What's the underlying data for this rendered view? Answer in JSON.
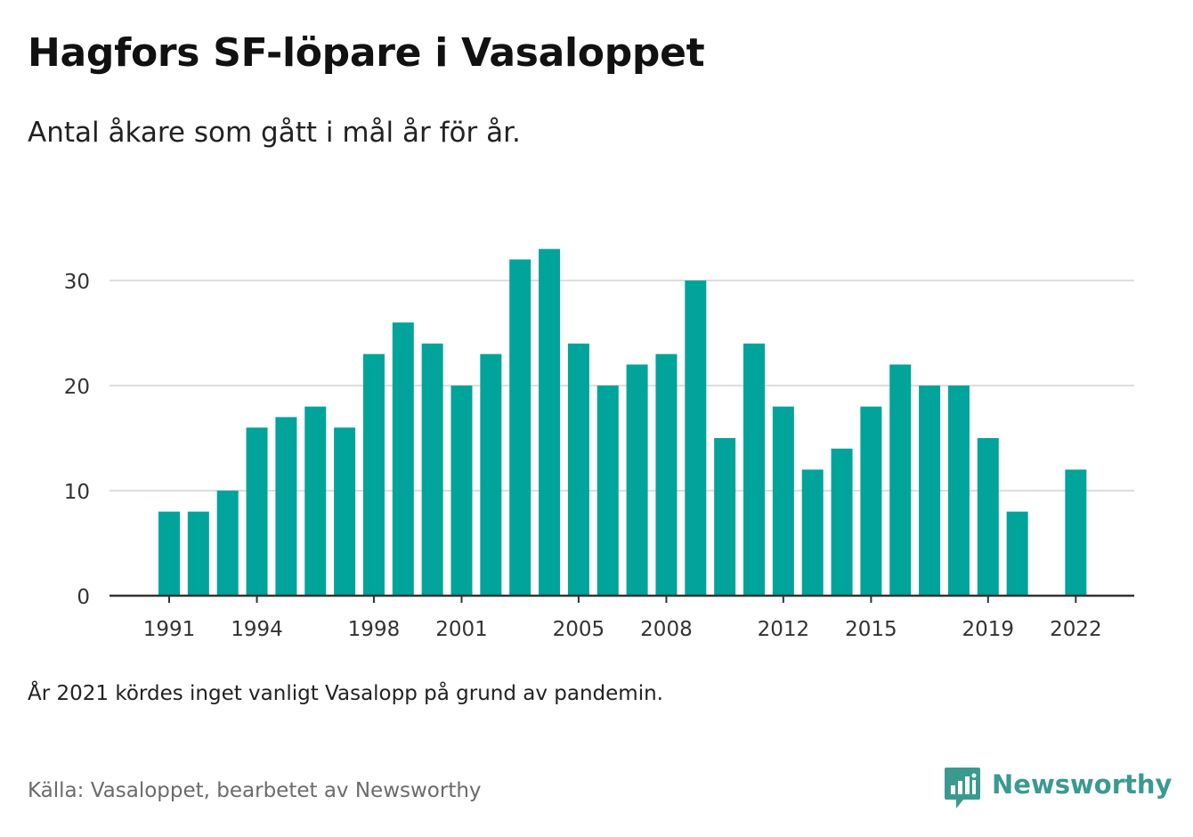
{
  "title": "Hagfors SF-löpare i Vasaloppet",
  "subtitle": "Antal åkare som gått i mål år för år.",
  "note": "År 2021 kördes inget vanligt Vasalopp på grund av pandemin.",
  "source": "Källa: Vasaloppet, bearbetet av Newsworthy",
  "brand": {
    "name": "Newsworthy",
    "icon": "newsworthy-logo-icon"
  },
  "colors": {
    "bar": "#00a49a",
    "grid": "#dddddd",
    "axis": "#333333",
    "tick_text": "#333333"
  },
  "chart_data": {
    "type": "bar",
    "title": "",
    "xlabel": "",
    "ylabel": "",
    "x": [
      1991,
      1992,
      1993,
      1994,
      1995,
      1996,
      1997,
      1998,
      1999,
      2000,
      2001,
      2002,
      2003,
      2004,
      2005,
      2006,
      2007,
      2008,
      2009,
      2010,
      2011,
      2012,
      2013,
      2014,
      2015,
      2016,
      2017,
      2018,
      2019,
      2020,
      2021,
      2022
    ],
    "values": [
      8,
      8,
      10,
      16,
      17,
      18,
      16,
      23,
      26,
      24,
      20,
      23,
      32,
      33,
      24,
      20,
      22,
      23,
      30,
      15,
      24,
      18,
      12,
      14,
      18,
      22,
      20,
      20,
      15,
      8,
      null,
      12
    ],
    "x_tick_labels": [
      "1991",
      "1994",
      "1998",
      "2001",
      "2005",
      "2008",
      "2012",
      "2015",
      "2019",
      "2022"
    ],
    "y_ticks": [
      "0",
      "10",
      "20",
      "30"
    ],
    "ylim": [
      0,
      33
    ],
    "grid": true
  }
}
